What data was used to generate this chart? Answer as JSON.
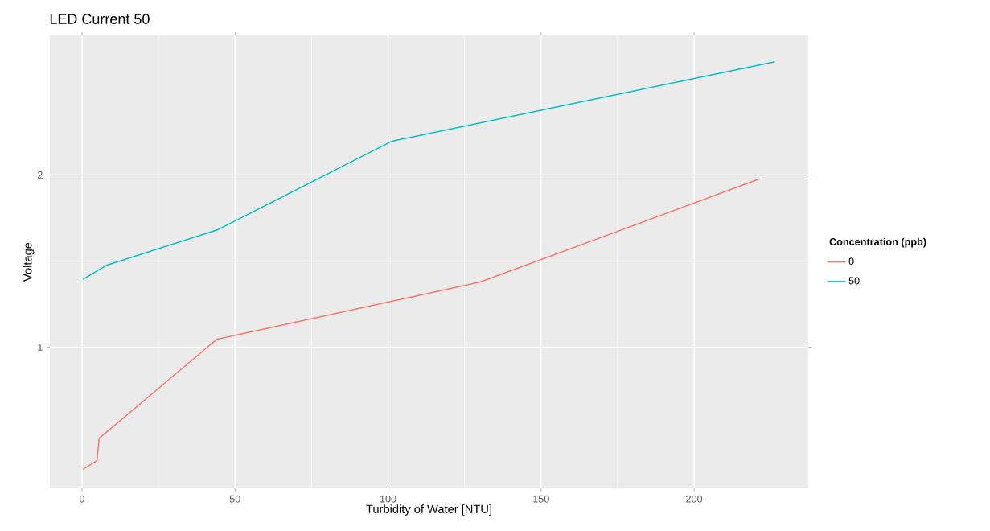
{
  "chart_data": {
    "type": "line",
    "title": "LED Current 50",
    "xlabel": "Turbidity of Water [NTU]",
    "ylabel": "Voltage",
    "legend_title": "Concentration (ppb)",
    "xlim": [
      -10.5,
      237.3
    ],
    "ylim": [
      0.18,
      2.81
    ],
    "xticks": [
      0,
      50,
      100,
      150,
      200
    ],
    "yticks": [
      1,
      2
    ],
    "grid": true,
    "legend": "right",
    "series": [
      {
        "name": "0",
        "color": "#f8766d",
        "x": [
          0.3,
          4.9,
          5.6,
          44,
          130.1,
          221.4
        ],
        "values": [
          0.29,
          0.34,
          0.47,
          1.045,
          1.378,
          1.977
        ]
      },
      {
        "name": "50",
        "color": "#00bfc4",
        "x": [
          0.3,
          8.0,
          44.4,
          101.3,
          226.4
        ],
        "values": [
          1.394,
          1.475,
          1.682,
          2.196,
          2.657
        ]
      }
    ]
  }
}
